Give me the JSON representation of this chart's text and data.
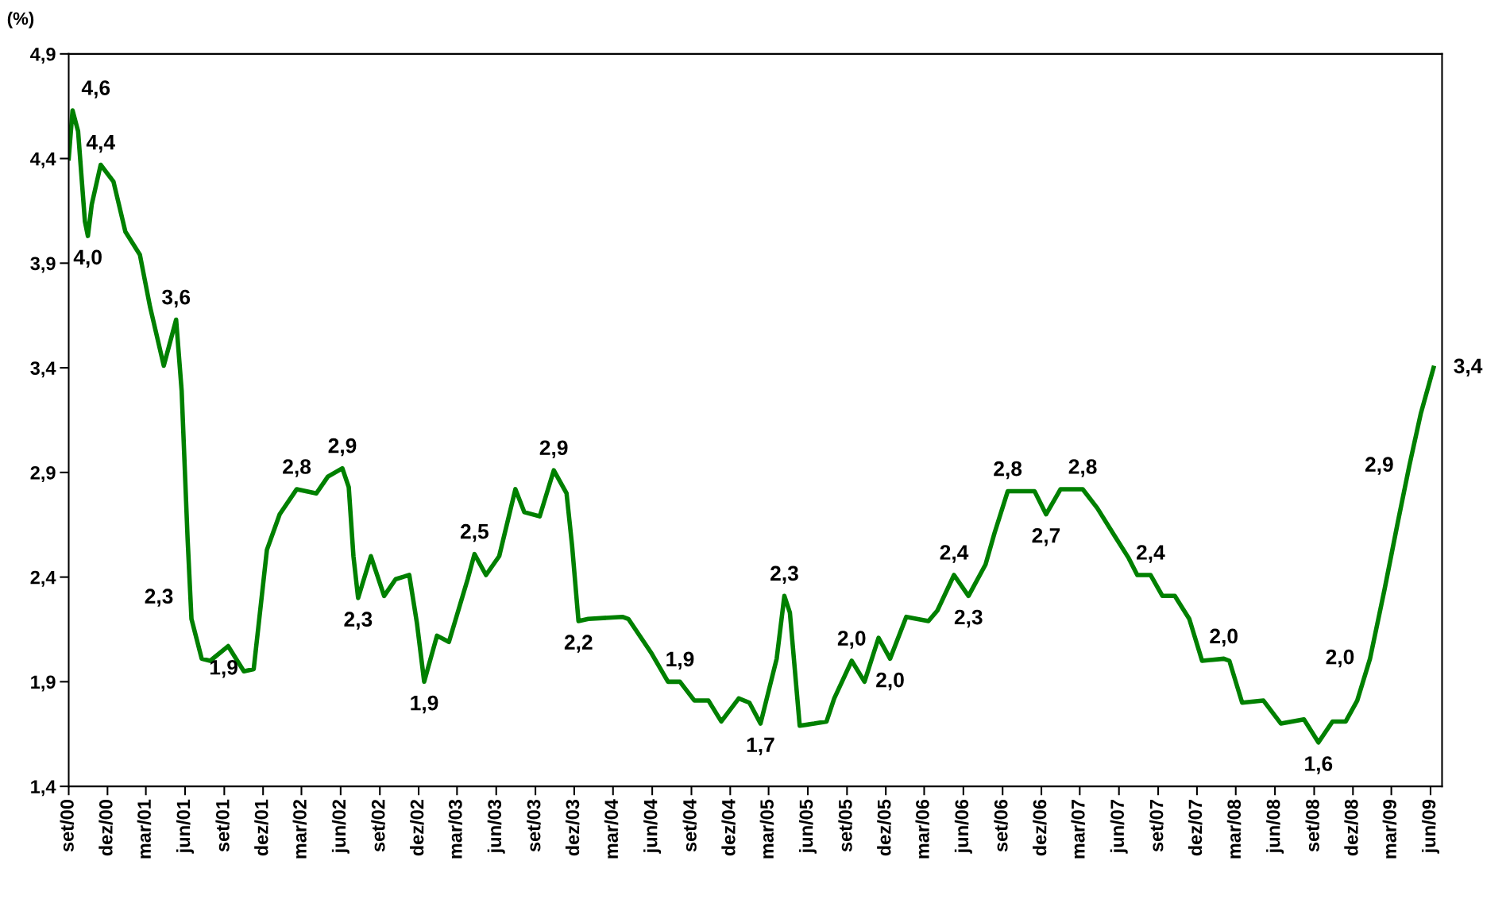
{
  "chart_data": {
    "type": "line",
    "ylabel": "(%)",
    "x": [
      "2000-09-01",
      "2000-09-10",
      "2000-09-23",
      "2000-10-09",
      "2000-10-16",
      "2000-10-25",
      "2000-11-15",
      "2000-12-15",
      "2001-01-12",
      "2001-02-15",
      "2001-03-11",
      "2001-04-12",
      "2001-05-11",
      "2001-05-24",
      "2001-06-07",
      "2001-06-16",
      "2001-07-10",
      "2001-07-30",
      "2001-09-10",
      "2001-10-17",
      "2001-11-09",
      "2001-12-10",
      "2002-01-09",
      "2002-02-18",
      "2002-04-05",
      "2002-05-02",
      "2002-06-05",
      "2002-06-20",
      "2002-07-01",
      "2002-07-12",
      "2002-08-11",
      "2002-09-11",
      "2002-10-08",
      "2002-11-09",
      "2002-11-27",
      "2002-12-14",
      "2003-01-13",
      "2003-02-10",
      "2003-03-26",
      "2003-04-11",
      "2003-05-08",
      "2003-06-08",
      "2003-07-16",
      "2003-08-06",
      "2003-09-11",
      "2003-10-14",
      "2003-11-13",
      "2003-11-26",
      "2003-12-11",
      "2004-01-03",
      "2004-03-23",
      "2004-04-06",
      "2004-05-29",
      "2004-07-08",
      "2004-08-05",
      "2004-09-08",
      "2004-10-11",
      "2004-11-10",
      "2004-12-21",
      "2005-01-15",
      "2005-02-10",
      "2005-03-20",
      "2005-04-07",
      "2005-04-20",
      "2005-05-13",
      "2005-06-16",
      "2005-07-15",
      "2005-08-02",
      "2005-09-12",
      "2005-10-12",
      "2005-11-14",
      "2005-12-11",
      "2006-01-18",
      "2006-03-11",
      "2006-04-01",
      "2006-05-10",
      "2006-06-13",
      "2006-07-23",
      "2006-08-13",
      "2006-09-13",
      "2006-10-12",
      "2006-11-15",
      "2006-12-12",
      "2007-01-15",
      "2007-03-08",
      "2007-04-11",
      "2007-05-21",
      "2007-06-24",
      "2007-07-14",
      "2007-08-14",
      "2007-09-11",
      "2007-10-10",
      "2007-11-13",
      "2007-12-13",
      "2008-02-02",
      "2008-02-15",
      "2008-03-16",
      "2008-05-05",
      "2008-06-15",
      "2008-08-08",
      "2008-09-11",
      "2008-10-14",
      "2008-11-14",
      "2008-12-11",
      "2009-01-10",
      "2009-02-13",
      "2009-03-16",
      "2009-04-12",
      "2009-05-09",
      "2009-06-08"
    ],
    "series": [
      {
        "color": "#008000",
        "values": [
          4.4,
          4.63,
          4.53,
          4.1,
          4.03,
          4.18,
          4.37,
          4.29,
          4.05,
          3.94,
          3.69,
          3.41,
          3.63,
          3.29,
          2.58,
          2.2,
          2.01,
          2.0,
          2.07,
          1.95,
          1.96,
          2.53,
          2.7,
          2.82,
          2.8,
          2.88,
          2.92,
          2.83,
          2.5,
          2.3,
          2.5,
          2.31,
          2.39,
          2.41,
          2.18,
          1.9,
          2.12,
          2.09,
          2.39,
          2.51,
          2.41,
          2.5,
          2.82,
          2.71,
          2.69,
          2.91,
          2.8,
          2.55,
          2.19,
          2.2,
          2.21,
          2.2,
          2.04,
          1.9,
          1.9,
          1.81,
          1.81,
          1.71,
          1.82,
          1.8,
          1.7,
          2.01,
          2.31,
          2.23,
          1.69,
          1.7,
          1.71,
          1.82,
          2.0,
          1.9,
          2.11,
          2.01,
          2.21,
          2.19,
          2.24,
          2.41,
          2.31,
          2.46,
          2.61,
          2.81,
          2.81,
          2.81,
          2.7,
          2.82,
          2.82,
          2.73,
          2.6,
          2.49,
          2.41,
          2.41,
          2.31,
          2.31,
          2.2,
          2.0,
          2.01,
          2.0,
          1.8,
          1.81,
          1.7,
          1.72,
          1.61,
          1.71,
          1.71,
          1.81,
          2.01,
          2.34,
          2.66,
          2.93,
          3.18,
          3.4
        ]
      }
    ],
    "xlim": [
      "2000-09-01",
      "2009-06-28"
    ],
    "xticks": [
      {
        "value": "2000-09-01",
        "label": "set/00"
      },
      {
        "value": "2000-12-01",
        "label": "dez/00"
      },
      {
        "value": "2001-03-01",
        "label": "mar/01"
      },
      {
        "value": "2001-06-01",
        "label": "jun/01"
      },
      {
        "value": "2001-09-01",
        "label": "set/01"
      },
      {
        "value": "2001-12-01",
        "label": "dez/01"
      },
      {
        "value": "2002-03-01",
        "label": "mar/02"
      },
      {
        "value": "2002-06-01",
        "label": "jun/02"
      },
      {
        "value": "2002-09-01",
        "label": "set/02"
      },
      {
        "value": "2002-12-01",
        "label": "dez/02"
      },
      {
        "value": "2003-03-01",
        "label": "mar/03"
      },
      {
        "value": "2003-06-01",
        "label": "jun/03"
      },
      {
        "value": "2003-09-01",
        "label": "set/03"
      },
      {
        "value": "2003-12-01",
        "label": "dez/03"
      },
      {
        "value": "2004-03-01",
        "label": "mar/04"
      },
      {
        "value": "2004-06-01",
        "label": "jun/04"
      },
      {
        "value": "2004-09-01",
        "label": "set/04"
      },
      {
        "value": "2004-12-01",
        "label": "dez/04"
      },
      {
        "value": "2005-03-01",
        "label": "mar/05"
      },
      {
        "value": "2005-06-01",
        "label": "jun/05"
      },
      {
        "value": "2005-09-01",
        "label": "set/05"
      },
      {
        "value": "2005-12-01",
        "label": "dez/05"
      },
      {
        "value": "2006-03-01",
        "label": "mar/06"
      },
      {
        "value": "2006-06-01",
        "label": "jun/06"
      },
      {
        "value": "2006-09-01",
        "label": "set/06"
      },
      {
        "value": "2006-12-01",
        "label": "dez/06"
      },
      {
        "value": "2007-03-01",
        "label": "mar/07"
      },
      {
        "value": "2007-06-01",
        "label": "jun/07"
      },
      {
        "value": "2007-09-01",
        "label": "set/07"
      },
      {
        "value": "2007-12-01",
        "label": "dez/07"
      },
      {
        "value": "2008-03-01",
        "label": "mar/08"
      },
      {
        "value": "2008-06-01",
        "label": "jun/08"
      },
      {
        "value": "2008-09-01",
        "label": "set/08"
      },
      {
        "value": "2008-12-01",
        "label": "dez/08"
      },
      {
        "value": "2009-03-01",
        "label": "mar/09"
      },
      {
        "value": "2009-06-01",
        "label": "jun/09"
      }
    ],
    "ylim": [
      1.4,
      4.9
    ],
    "yticks": [
      {
        "value": 1.4,
        "label": "1,4"
      },
      {
        "value": 1.9,
        "label": "1,9"
      },
      {
        "value": 2.4,
        "label": "2,4"
      },
      {
        "value": 2.9,
        "label": "2,9"
      },
      {
        "value": 3.4,
        "label": "3,4"
      },
      {
        "value": 3.9,
        "label": "3,9"
      },
      {
        "value": 4.4,
        "label": "4,4"
      },
      {
        "value": 4.9,
        "label": "4,9"
      }
    ],
    "grid": false,
    "legend": false,
    "marker": "none",
    "line_style": "solid",
    "annotations": [
      {
        "text": "4,6",
        "x": "2000-09-10",
        "y": 4.63
      },
      {
        "text": "4,0",
        "x": "2000-10-16",
        "y": 4.03
      },
      {
        "text": "4,4",
        "x": "2000-11-15",
        "y": 4.37
      },
      {
        "text": "3,6",
        "x": "2001-05-11",
        "y": 3.63
      },
      {
        "text": "2,3",
        "x": "2001-06-10",
        "y": 2.3
      },
      {
        "text": "1,9",
        "x": "2001-11-09",
        "y": 1.96
      },
      {
        "text": "2,8",
        "x": "2002-02-18",
        "y": 2.82
      },
      {
        "text": "2,9",
        "x": "2002-06-05",
        "y": 2.92
      },
      {
        "text": "2,3",
        "x": "2002-07-12",
        "y": 2.3
      },
      {
        "text": "1,9",
        "x": "2002-12-14",
        "y": 1.9
      },
      {
        "text": "2,5",
        "x": "2003-04-11",
        "y": 2.51
      },
      {
        "text": "2,9",
        "x": "2003-10-14",
        "y": 2.91
      },
      {
        "text": "2,2",
        "x": "2003-12-11",
        "y": 2.19
      },
      {
        "text": "1,9",
        "x": "2004-08-05",
        "y": 1.9
      },
      {
        "text": "1,7",
        "x": "2005-02-10",
        "y": 1.7
      },
      {
        "text": "2,3",
        "x": "2005-04-07",
        "y": 2.31
      },
      {
        "text": "2,0",
        "x": "2005-09-12",
        "y": 2.0
      },
      {
        "text": "2,0",
        "x": "2005-12-11",
        "y": 2.01
      },
      {
        "text": "2,4",
        "x": "2006-05-10",
        "y": 2.41
      },
      {
        "text": "2,3",
        "x": "2006-06-13",
        "y": 2.31
      },
      {
        "text": "2,8",
        "x": "2006-09-13",
        "y": 2.81
      },
      {
        "text": "2,7",
        "x": "2006-12-12",
        "y": 2.7
      },
      {
        "text": "2,8",
        "x": "2007-03-08",
        "y": 2.82
      },
      {
        "text": "2,4",
        "x": "2007-08-14",
        "y": 2.41
      },
      {
        "text": "2,0",
        "x": "2008-02-02",
        "y": 2.01
      },
      {
        "text": "1,6",
        "x": "2008-09-11",
        "y": 1.61
      },
      {
        "text": "2,0",
        "x": "2009-01-10",
        "y": 2.01
      },
      {
        "text": "2,9",
        "x": "2009-04-12",
        "y": 2.93
      },
      {
        "text": "3,4",
        "x": "2009-06-08",
        "y": 3.4
      }
    ]
  }
}
